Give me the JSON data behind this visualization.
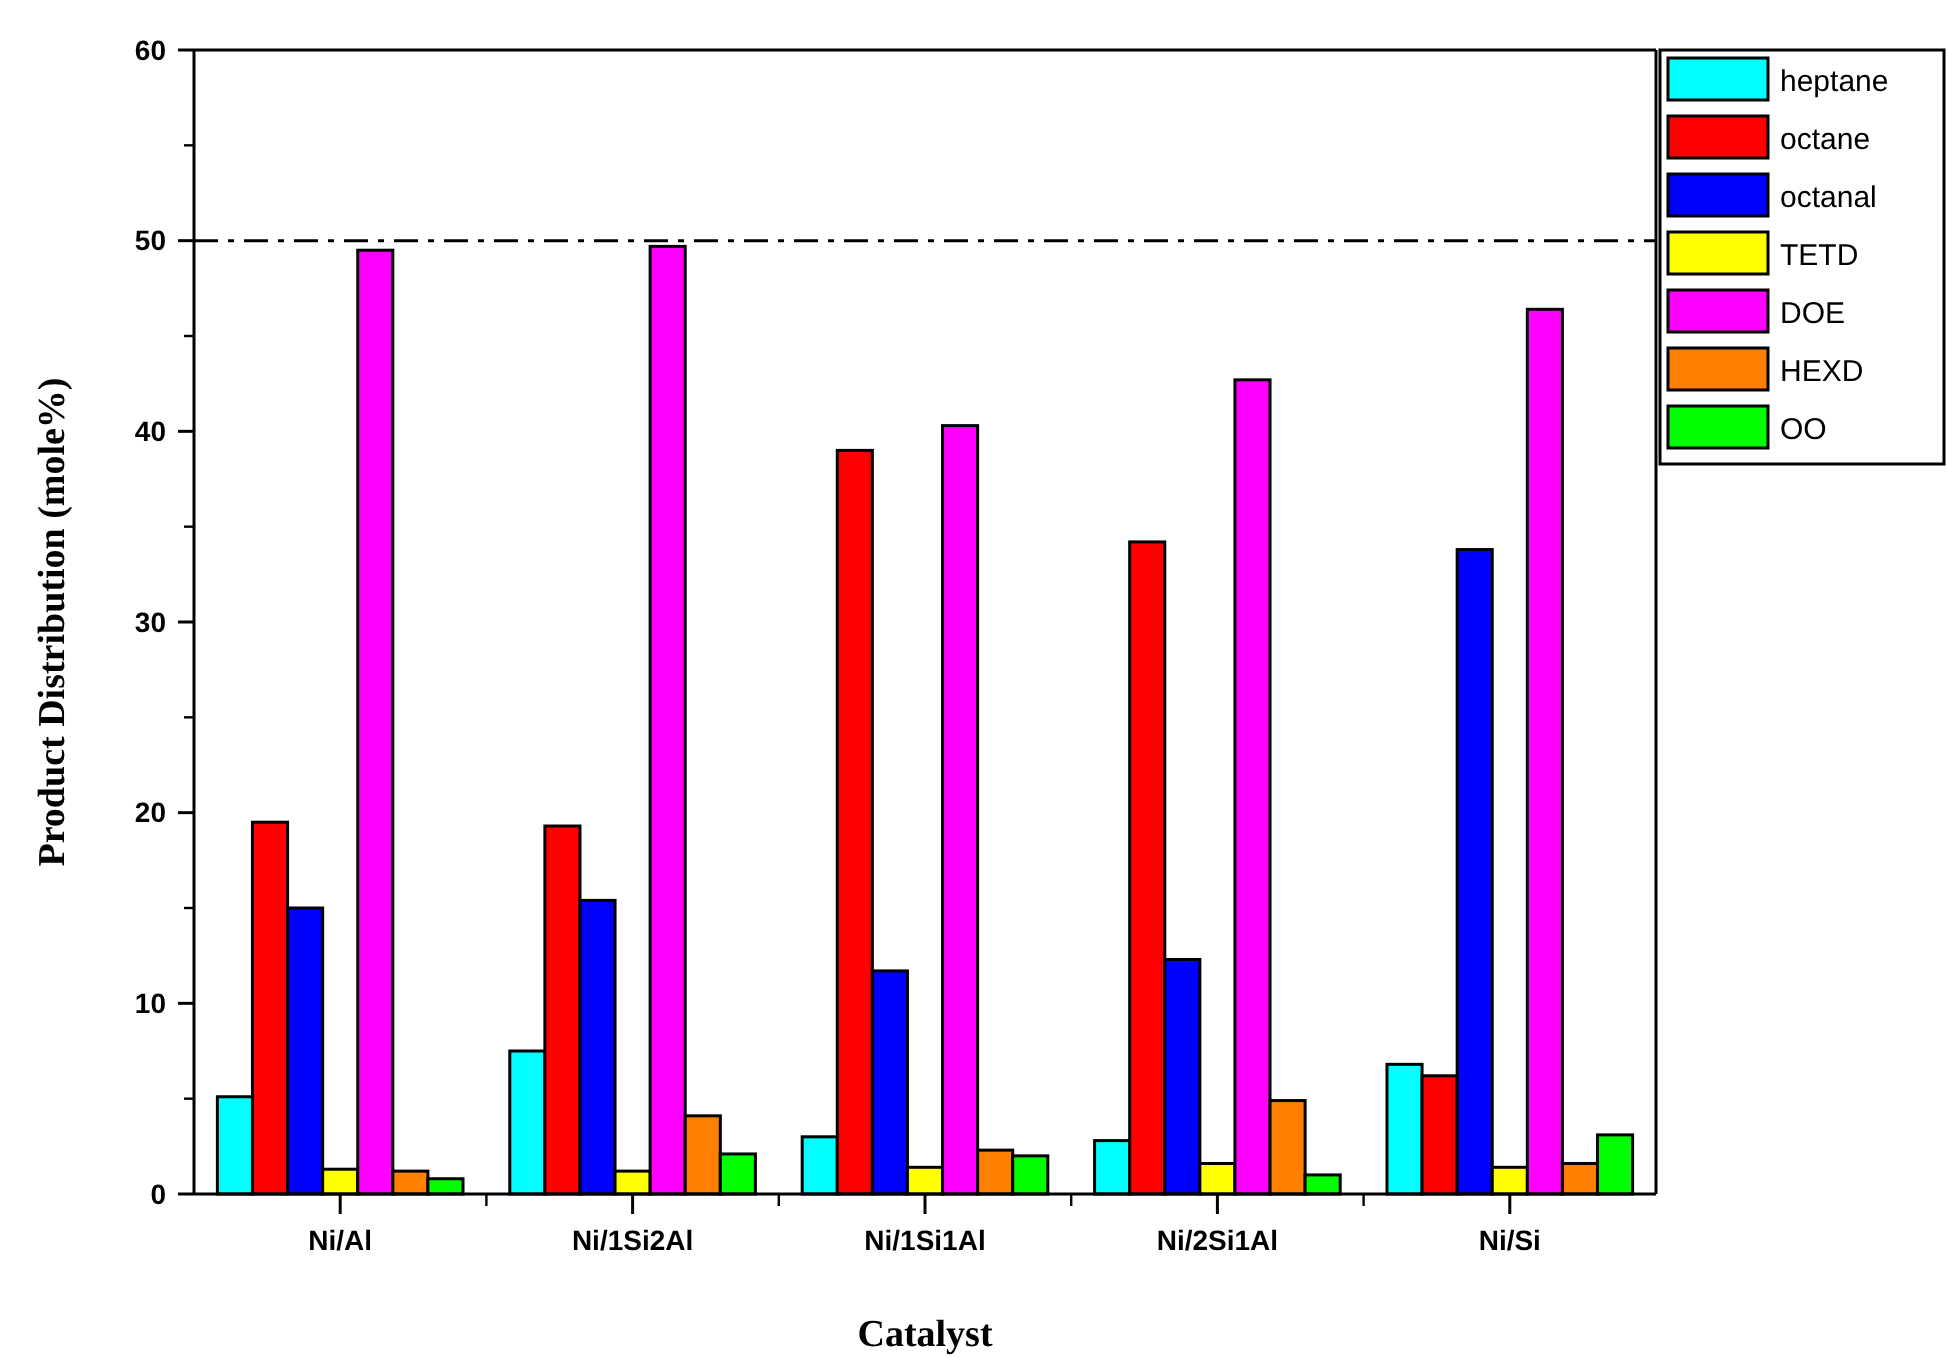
{
  "chart_data": {
    "type": "bar",
    "xlabel": "Catalyst",
    "ylabel": "Product Distribution (mole%)",
    "categories": [
      "Ni/Al",
      "Ni/1Si2Al",
      "Ni/1Si1Al",
      "Ni/2Si1Al",
      "Ni/Si"
    ],
    "series": [
      {
        "name": "heptane",
        "color": "#00ffff",
        "values": [
          5.1,
          7.5,
          3.0,
          2.8,
          6.8
        ]
      },
      {
        "name": "octane",
        "color": "#ff0000",
        "values": [
          19.5,
          19.3,
          39.0,
          34.2,
          6.2
        ]
      },
      {
        "name": "octanal",
        "color": "#0000ff",
        "values": [
          15.0,
          15.4,
          11.7,
          12.3,
          33.8
        ]
      },
      {
        "name": "TETD",
        "color": "#ffff00",
        "values": [
          1.3,
          1.2,
          1.4,
          1.6,
          1.4
        ]
      },
      {
        "name": "DOE",
        "color": "#ff00ff",
        "values": [
          49.5,
          49.7,
          40.3,
          42.7,
          46.4
        ]
      },
      {
        "name": "HEXD",
        "color": "#ff8000",
        "values": [
          1.2,
          4.1,
          2.3,
          4.9,
          1.6
        ]
      },
      {
        "name": "OO",
        "color": "#00ff00",
        "values": [
          0.8,
          2.1,
          2.0,
          1.0,
          3.1
        ]
      }
    ],
    "ylim": [
      0,
      60
    ],
    "yticks": [
      0,
      10,
      20,
      30,
      40,
      50,
      60
    ],
    "ref_lines": [
      {
        "axis": "y",
        "value": 50,
        "line_style": "dashed",
        "color": "#000000"
      }
    ],
    "legend": "top right",
    "grid": false
  }
}
